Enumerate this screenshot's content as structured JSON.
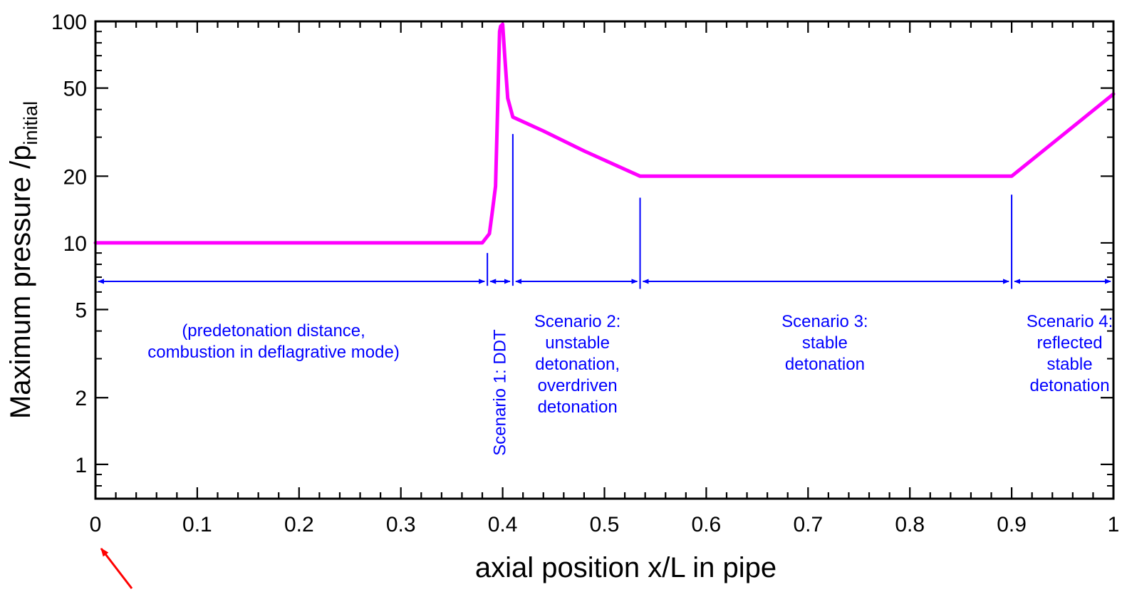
{
  "colors": {
    "curve": "#ff00ff",
    "annotation": "#0000ff",
    "axis": "#000000",
    "pointer_arrow": "#ff0000"
  },
  "chart_data": {
    "type": "line",
    "title": "",
    "xlabel": "axial position x/L in pipe",
    "ylabel_main": "Maximum pressure /p",
    "ylabel_subscript": "initial",
    "xlim": [
      0,
      1
    ],
    "ylim": [
      0.7,
      100
    ],
    "yscale": "log",
    "xticks": [
      0,
      0.1,
      0.2,
      0.3,
      0.4,
      0.5,
      0.6,
      0.7,
      0.8,
      0.9,
      1
    ],
    "xtick_labels": [
      "0",
      "0.1",
      "0.2",
      "0.3",
      "0.4",
      "0.5",
      "0.6",
      "0.7",
      "0.8",
      "0.9",
      "1"
    ],
    "yticks": [
      1,
      2,
      5,
      10,
      20,
      50,
      100
    ],
    "ytick_labels": [
      "1",
      "2",
      "5",
      "10",
      "20",
      "50",
      "100"
    ],
    "grid": false,
    "legend": "none",
    "series": [
      {
        "x": [
          0,
          0.38,
          0.387,
          0.39,
          0.393,
          0.395,
          0.397,
          0.398,
          0.4,
          0.402,
          0.405,
          0.41,
          0.44,
          0.48,
          0.535,
          0.9,
          1.0
        ],
        "y": [
          10,
          10,
          11,
          14,
          18,
          40,
          90,
          95,
          97,
          70,
          45,
          37,
          32,
          26,
          20,
          20,
          47
        ]
      }
    ],
    "boundaries": [
      0.385,
      0.41,
      0.535,
      0.9
    ],
    "regions": [
      {
        "x_start": 0,
        "x_end": 0.385,
        "lines": [
          "(predetonation distance,",
          "combustion in deflagrative mode)"
        ]
      },
      {
        "x_start": 0.385,
        "x_end": 0.41,
        "lines": [
          "Scenario 1:  DDT"
        ],
        "vertical": true
      },
      {
        "x_start": 0.41,
        "x_end": 0.535,
        "lines": [
          "Scenario 2:",
          "unstable",
          "detonation,",
          "overdriven",
          "detonation"
        ]
      },
      {
        "x_start": 0.535,
        "x_end": 0.9,
        "lines": [
          "Scenario 3:",
          "stable",
          "detonation"
        ]
      },
      {
        "x_start": 0.9,
        "x_end": 1.0,
        "lines": [
          "Scenario 4:",
          "reflected",
          "stable",
          "detonation"
        ]
      }
    ]
  }
}
